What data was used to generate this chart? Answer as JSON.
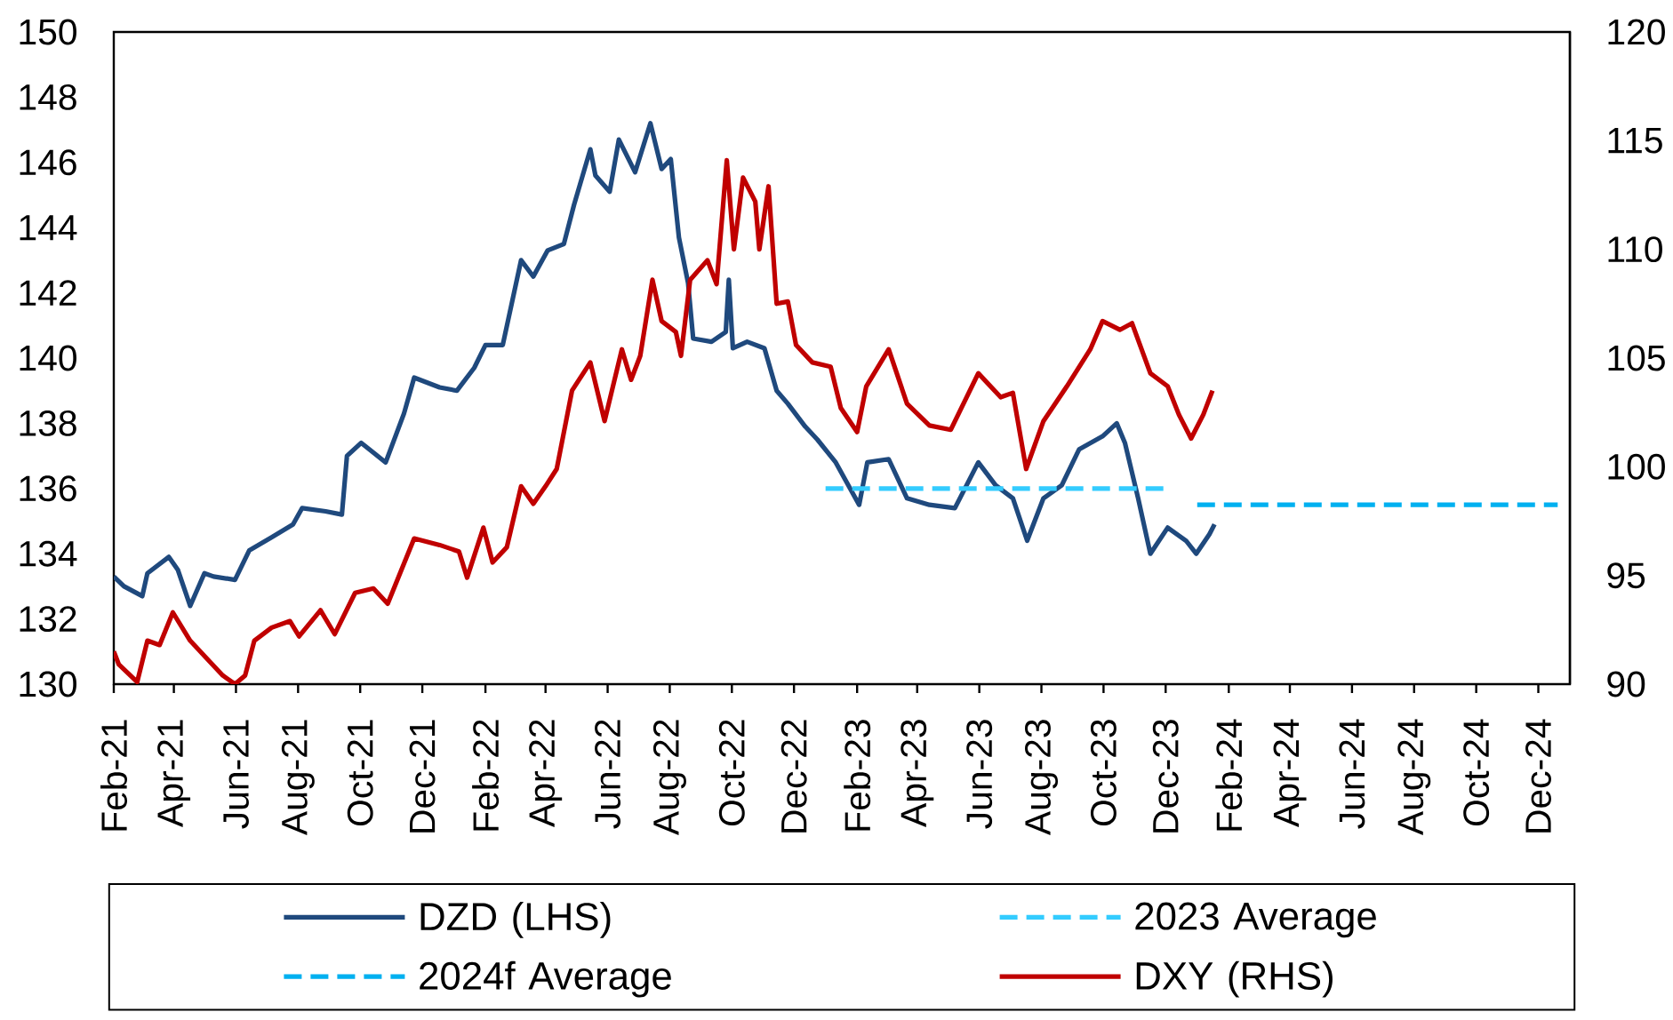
{
  "chart_data": {
    "type": "line",
    "marker": "none",
    "legend": "bottom",
    "xlim": [
      "2021-02-01",
      "2025-01-01"
    ],
    "xticks": [
      {
        "value": "2021-02-01",
        "label": "Feb-21"
      },
      {
        "value": "2021-04-01",
        "label": "Apr-21"
      },
      {
        "value": "2021-06-01",
        "label": "Jun-21"
      },
      {
        "value": "2021-08-01",
        "label": "Aug-21"
      },
      {
        "value": "2021-10-01",
        "label": "Oct-21"
      },
      {
        "value": "2021-12-01",
        "label": "Dec-21"
      },
      {
        "value": "2022-02-01",
        "label": "Feb-22"
      },
      {
        "value": "2022-04-01",
        "label": "Apr-22"
      },
      {
        "value": "2022-06-01",
        "label": "Jun-22"
      },
      {
        "value": "2022-08-01",
        "label": "Aug-22"
      },
      {
        "value": "2022-10-01",
        "label": "Oct-22"
      },
      {
        "value": "2022-12-01",
        "label": "Dec-22"
      },
      {
        "value": "2023-02-01",
        "label": "Feb-23"
      },
      {
        "value": "2023-04-01",
        "label": "Apr-23"
      },
      {
        "value": "2023-06-01",
        "label": "Jun-23"
      },
      {
        "value": "2023-08-01",
        "label": "Aug-23"
      },
      {
        "value": "2023-10-01",
        "label": "Oct-23"
      },
      {
        "value": "2023-12-01",
        "label": "Dec-23"
      },
      {
        "value": "2024-02-01",
        "label": "Feb-24"
      },
      {
        "value": "2024-04-01",
        "label": "Apr-24"
      },
      {
        "value": "2024-06-01",
        "label": "Jun-24"
      },
      {
        "value": "2024-08-01",
        "label": "Aug-24"
      },
      {
        "value": "2024-10-01",
        "label": "Oct-24"
      },
      {
        "value": "2024-12-01",
        "label": "Dec-24"
      }
    ],
    "ylim": [
      130,
      150
    ],
    "yticks": [
      130,
      132,
      134,
      136,
      138,
      140,
      142,
      144,
      146,
      148,
      150
    ],
    "y2lim": [
      90,
      120
    ],
    "y2ticks": [
      90,
      95,
      100,
      105,
      110,
      115,
      120
    ],
    "series": [
      {
        "name": "DZD (LHS)",
        "color": "#1f497d",
        "line_style": "solid",
        "x": [
          "2021-02-01",
          "2021-02-11",
          "2021-03-01",
          "2021-03-06",
          "2021-03-27",
          "2021-04-05",
          "2021-04-17",
          "2021-05-01",
          "2021-05-10",
          "2021-05-31",
          "2021-06-14",
          "2021-07-06",
          "2021-07-27",
          "2021-08-05",
          "2021-08-28",
          "2021-09-13",
          "2021-09-18",
          "2021-10-02",
          "2021-10-26",
          "2021-11-13",
          "2021-11-23",
          "2021-12-18",
          "2022-01-04",
          "2022-01-21",
          "2022-02-01",
          "2022-02-18",
          "2022-03-08",
          "2022-03-20",
          "2022-04-03",
          "2022-04-19",
          "2022-04-29",
          "2022-05-15",
          "2022-05-20",
          "2022-06-03",
          "2022-06-12",
          "2022-06-28",
          "2022-07-13",
          "2022-07-24",
          "2022-08-02",
          "2022-08-10",
          "2022-08-19",
          "2022-08-24",
          "2022-09-11",
          "2022-09-25",
          "2022-09-28",
          "2022-10-02",
          "2022-10-16",
          "2022-11-02",
          "2022-11-14",
          "2022-11-25",
          "2022-12-12",
          "2022-12-24",
          "2023-01-11",
          "2023-02-03",
          "2023-02-11",
          "2023-03-04",
          "2023-03-22",
          "2023-04-13",
          "2023-05-08",
          "2023-05-31",
          "2023-06-17",
          "2023-07-04",
          "2023-07-18",
          "2023-08-03",
          "2023-08-21",
          "2023-09-07",
          "2023-09-30",
          "2023-10-14",
          "2023-10-22",
          "2023-11-04",
          "2023-11-16",
          "2023-12-03",
          "2023-12-21",
          "2023-12-31",
          "2024-01-13",
          "2024-01-18"
        ],
        "values": [
          133.3,
          133.0,
          132.7,
          133.4,
          133.9,
          133.5,
          132.4,
          133.4,
          133.3,
          133.2,
          134.1,
          134.5,
          134.9,
          135.4,
          135.3,
          135.2,
          137.0,
          137.4,
          136.8,
          138.3,
          139.4,
          139.1,
          139.0,
          139.7,
          140.4,
          140.4,
          143.0,
          142.5,
          143.3,
          143.5,
          144.7,
          146.4,
          145.6,
          145.1,
          146.7,
          145.7,
          147.2,
          145.8,
          146.1,
          143.7,
          142.3,
          140.6,
          140.5,
          140.8,
          142.4,
          140.3,
          140.5,
          140.3,
          139.0,
          138.6,
          137.9,
          137.5,
          136.8,
          135.5,
          136.8,
          136.9,
          135.7,
          135.5,
          135.4,
          136.8,
          136.1,
          135.7,
          134.4,
          135.7,
          136.1,
          137.2,
          137.6,
          138.0,
          137.4,
          135.7,
          134.0,
          134.8,
          134.4,
          134.0,
          134.6,
          134.9
        ]
      },
      {
        "name": "2023 Average",
        "color": "#33ccff",
        "line_style": "dashed",
        "x": [
          "2023-01-01",
          "2023-11-30"
        ],
        "values": [
          136.0,
          136.0
        ]
      },
      {
        "name": "2024f Average",
        "color": "#00b0f0",
        "line_style": "dashed",
        "x": [
          "2024-01-01",
          "2024-12-20"
        ],
        "values": [
          135.5,
          135.5
        ]
      },
      {
        "name": "DXY (RHS)",
        "color": "#c00000",
        "line_style": "solid",
        "axis": "y2",
        "x": [
          "2021-02-01",
          "2021-02-06",
          "2021-02-24",
          "2021-03-06",
          "2021-03-18",
          "2021-03-31",
          "2021-04-17",
          "2021-05-01",
          "2021-05-19",
          "2021-05-31",
          "2021-06-10",
          "2021-06-19",
          "2021-07-06",
          "2021-07-24",
          "2021-08-02",
          "2021-08-23",
          "2021-09-06",
          "2021-09-26",
          "2021-10-14",
          "2021-10-28",
          "2021-11-23",
          "2021-12-18",
          "2022-01-06",
          "2022-01-14",
          "2022-01-30",
          "2022-02-08",
          "2022-02-22",
          "2022-03-08",
          "2022-03-20",
          "2022-04-01",
          "2022-04-12",
          "2022-04-27",
          "2022-05-15",
          "2022-05-29",
          "2022-06-15",
          "2022-06-24",
          "2022-07-03",
          "2022-07-15",
          "2022-07-24",
          "2022-08-07",
          "2022-08-12",
          "2022-08-21",
          "2022-09-07",
          "2022-09-16",
          "2022-09-26",
          "2022-10-03",
          "2022-10-12",
          "2022-10-24",
          "2022-10-28",
          "2022-11-06",
          "2022-11-14",
          "2022-11-25",
          "2022-12-03",
          "2022-12-19",
          "2023-01-06",
          "2023-01-16",
          "2023-02-01",
          "2023-02-10",
          "2023-03-04",
          "2023-03-22",
          "2023-04-13",
          "2023-05-04",
          "2023-05-31",
          "2023-06-22",
          "2023-07-04",
          "2023-07-17",
          "2023-08-03",
          "2023-08-26",
          "2023-09-18",
          "2023-09-30",
          "2023-10-17",
          "2023-10-29",
          "2023-11-16",
          "2023-12-03",
          "2023-12-14",
          "2023-12-26",
          "2024-01-07",
          "2024-01-16"
        ],
        "values": [
          91.5,
          90.9,
          90.1,
          92.0,
          91.8,
          93.3,
          92.0,
          91.3,
          90.4,
          90.0,
          90.4,
          92.0,
          92.6,
          92.9,
          92.2,
          93.4,
          92.3,
          94.2,
          94.4,
          93.7,
          96.7,
          96.4,
          96.1,
          94.9,
          97.2,
          95.6,
          96.3,
          99.1,
          98.3,
          99.1,
          99.9,
          103.5,
          104.8,
          102.1,
          105.4,
          104.0,
          105.1,
          108.6,
          106.7,
          106.2,
          105.1,
          108.6,
          109.5,
          108.4,
          114.1,
          110.0,
          113.3,
          112.2,
          110.0,
          112.9,
          107.5,
          107.6,
          105.6,
          104.8,
          104.6,
          102.7,
          101.6,
          103.7,
          105.4,
          102.9,
          101.9,
          101.7,
          104.3,
          103.2,
          103.4,
          99.9,
          102.1,
          103.7,
          105.4,
          106.7,
          106.3,
          106.6,
          104.3,
          103.7,
          102.4,
          101.3,
          102.4,
          103.5
        ]
      }
    ]
  }
}
